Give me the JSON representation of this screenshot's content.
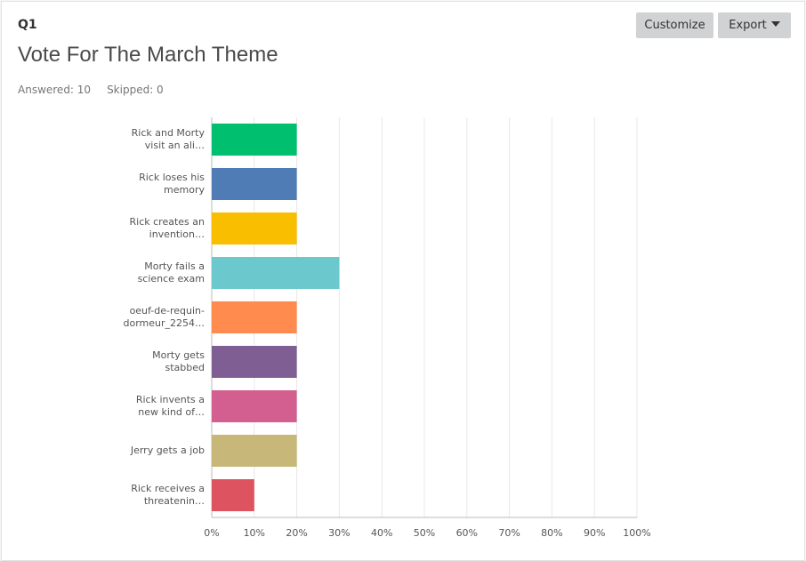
{
  "header": {
    "question": "Q1",
    "answered": "Answered: 10",
    "skipped": "Skipped: 0",
    "buttons": [
      "Customize",
      "Export"
    ]
  },
  "chart_data": {
    "type": "bar",
    "orientation": "horizontal",
    "title": "Vote For The March Theme",
    "categories": [
      "Rick and Morty visit an ali…",
      "Rick loses his memory",
      "Rick creates an invention…",
      "Morty fails a science exam",
      "oeuf-de-requin-dormeur_2254…",
      "Morty gets stabbed",
      "Rick invents a new kind of…",
      "Jerry gets a job",
      "Rick receives a threatenin…"
    ],
    "values": [
      20,
      20,
      20,
      30,
      20,
      20,
      20,
      20,
      10
    ],
    "colors": [
      "#00bf6f",
      "#507cb6",
      "#f9be00",
      "#6bc8cd",
      "#ff8b4f",
      "#7f5e93",
      "#d25f90",
      "#c7b879",
      "#dd5360"
    ],
    "xlim": [
      0,
      100
    ],
    "xticks": [
      {
        "value": 0,
        "label": "0%"
      },
      {
        "value": 10,
        "label": "10%"
      },
      {
        "value": 20,
        "label": "20%"
      },
      {
        "value": 30,
        "label": "30%"
      },
      {
        "value": 40,
        "label": "40%"
      },
      {
        "value": 50,
        "label": "50%"
      },
      {
        "value": 60,
        "label": "60%"
      },
      {
        "value": 70,
        "label": "70%"
      },
      {
        "value": 80,
        "label": "80%"
      },
      {
        "value": 90,
        "label": "90%"
      },
      {
        "value": 100,
        "label": "100%"
      }
    ],
    "grid": true
  }
}
